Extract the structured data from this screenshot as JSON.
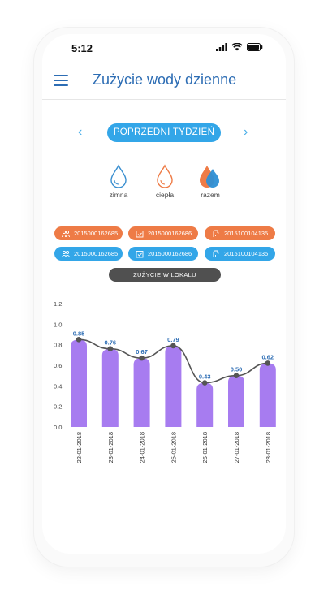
{
  "status_bar": {
    "time": "5:12",
    "icons": [
      "signal-icon",
      "wifi-icon",
      "battery-icon"
    ]
  },
  "header": {
    "title": "Zużycie wody dzienne",
    "menu_icon": "hamburger-menu-icon"
  },
  "week_nav": {
    "label": "POPRZEDNI TYDZIEŃ",
    "prev_icon": "chevron-left-icon",
    "next_icon": "chevron-right-icon"
  },
  "water_types": [
    {
      "label": "zimna",
      "icon": "cold-water-drop-icon"
    },
    {
      "label": "ciepła",
      "icon": "hot-water-drop-icon"
    },
    {
      "label": "razem",
      "icon": "combined-water-drop-icon"
    }
  ],
  "meters": {
    "hot": [
      {
        "id": "2015000162685",
        "icon": "people-icon"
      },
      {
        "id": "2015000162686",
        "icon": "calendar-icon"
      },
      {
        "id": "2015100104135",
        "icon": "tap-icon"
      }
    ],
    "cold": [
      {
        "id": "2015000162685",
        "icon": "people-icon"
      },
      {
        "id": "2015000162686",
        "icon": "calendar-icon"
      },
      {
        "id": "2015100104135",
        "icon": "tap-icon"
      }
    ]
  },
  "lokal_button": "ZUŻYCIE W LOKALU",
  "colors": {
    "accent": "#33a6e8",
    "title": "#2d6db4",
    "hot": "#ee7b46",
    "bar": "#a77cf0",
    "dark": "#505050"
  },
  "chart_data": {
    "type": "bar",
    "categories": [
      "22-01-2018",
      "23-01-2018",
      "24-01-2018",
      "25-01-2018",
      "26-01-2018",
      "27-01-2018",
      "28-01-2018"
    ],
    "values": [
      0.85,
      0.76,
      0.67,
      0.79,
      0.43,
      0.5,
      0.62
    ],
    "data_labels": [
      "0.85",
      "0.76",
      "0.67",
      "0.79",
      "0.43",
      "0.50",
      "0.62"
    ],
    "yticks": [
      "0.0",
      "0.2",
      "0.4",
      "0.6",
      "0.8",
      "1.0",
      "1.2"
    ],
    "ylim": [
      0,
      1.2
    ],
    "line_overlay": true
  }
}
